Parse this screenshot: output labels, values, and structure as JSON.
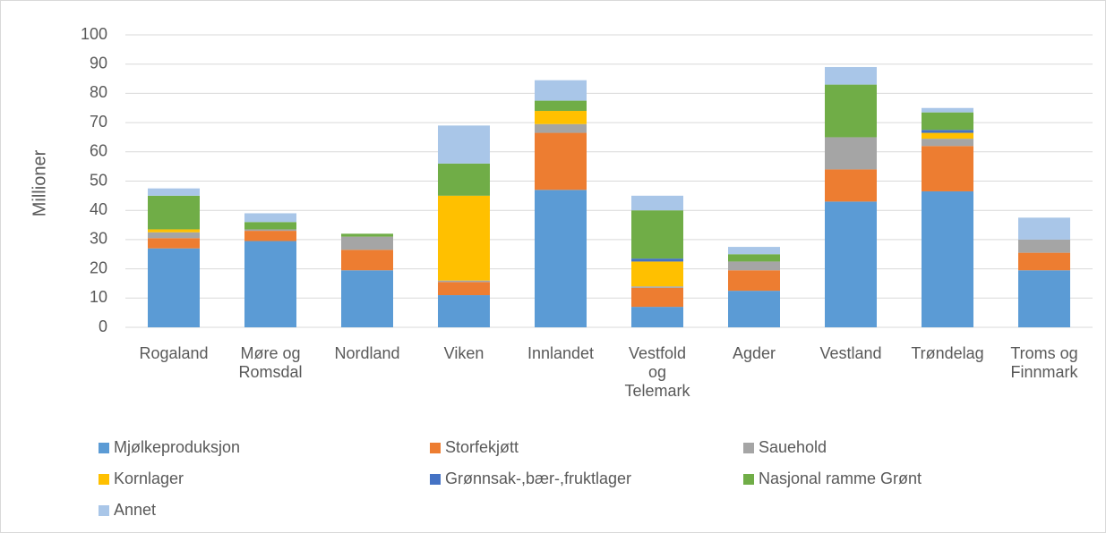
{
  "chart_data": {
    "type": "stacked_bar",
    "y_label": "Millioner",
    "categories": [
      "Rogaland",
      "Møre og Romsdal",
      "Nordland",
      "Viken",
      "Innlandet",
      "Vestfold og Telemark",
      "Agder",
      "Vestland",
      "Trøndelag",
      "Troms og Finnmark"
    ],
    "series": [
      {
        "name": "Mjølkeproduksjon",
        "color": "#5b9bd5",
        "values": [
          27,
          29.5,
          19.5,
          11,
          47,
          7,
          12.5,
          43,
          46.5,
          19.5
        ]
      },
      {
        "name": "Storfekjøtt",
        "color": "#ed7d31",
        "values": [
          3.5,
          3.5,
          7,
          4.5,
          19.5,
          6.5,
          7,
          11,
          15.5,
          6
        ]
      },
      {
        "name": "Sauehold",
        "color": "#a5a5a5",
        "values": [
          2,
          0.5,
          4.5,
          0.5,
          3,
          0.5,
          3,
          11,
          2.5,
          4.5
        ]
      },
      {
        "name": "Kornlager",
        "color": "#ffc000",
        "values": [
          1,
          0,
          0,
          29,
          4.5,
          8.5,
          0,
          0,
          2,
          0
        ]
      },
      {
        "name": "Grønnsak-,bær-,fruktlager",
        "color": "#4472c4",
        "values": [
          0,
          0,
          0,
          0,
          0,
          1,
          0,
          0,
          1,
          0
        ]
      },
      {
        "name": "Nasjonal ramme Grønt",
        "color": "#70ad47",
        "values": [
          11.5,
          2.5,
          1,
          11,
          3.5,
          16.5,
          2.5,
          18,
          6,
          0
        ]
      },
      {
        "name": "Annet",
        "color": "#a9c6e8",
        "values": [
          2.5,
          3,
          0,
          13,
          7,
          5,
          2.5,
          6,
          1.5,
          7.5
        ]
      }
    ],
    "ylim": [
      0,
      100
    ],
    "yticks": [
      0,
      10,
      20,
      30,
      40,
      50,
      60,
      70,
      80,
      90,
      100
    ],
    "grid": true
  }
}
